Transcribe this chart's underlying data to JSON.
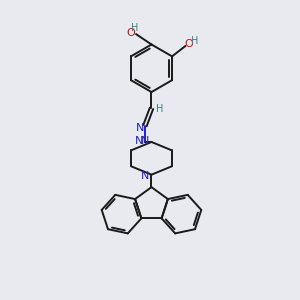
{
  "background_color": "#e8eaf0",
  "bond_color": "#1a1a1a",
  "nitrogen_color": "#2020cc",
  "oxygen_color": "#cc1010",
  "hydrogen_color": "#408080",
  "line_width": 1.4,
  "xlim": [
    0,
    10
  ],
  "ylim": [
    0,
    10
  ]
}
